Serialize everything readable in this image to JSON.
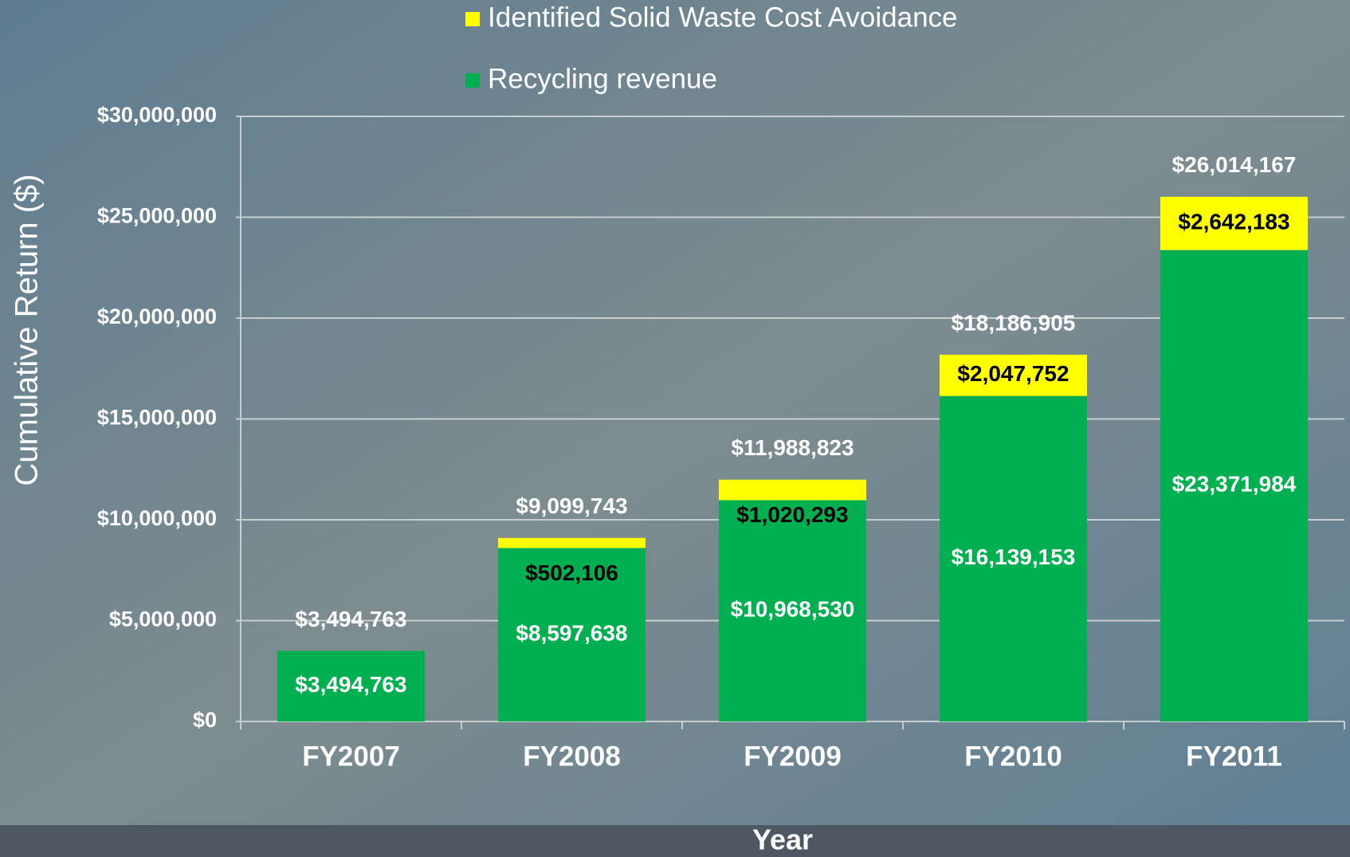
{
  "chart_data": {
    "type": "stacked_bar",
    "y_label": "Cumulative Return ($)",
    "x_label": "Year",
    "categories": [
      "FY2007",
      "FY2008",
      "FY2009",
      "FY2010",
      "FY2011"
    ],
    "series": [
      {
        "name": "Recycling revenue",
        "color": "#00b050",
        "values": [
          3494763,
          8597638,
          10968530,
          16139153,
          23371984
        ],
        "value_labels": [
          "$3,494,763",
          "$8,597,638",
          "$10,968,530",
          "$16,139,153",
          "$23,371,984"
        ]
      },
      {
        "name": "Identified Solid Waste Cost Avoidance",
        "color": "#ffff00",
        "values": [
          null,
          502106,
          1020293,
          2047752,
          2642183
        ],
        "value_labels": [
          null,
          "$502,106",
          "$1,020,293",
          "$2,047,752",
          "$2,642,183"
        ]
      }
    ],
    "totals": [
      3494763,
      9099743,
      11988823,
      18186905,
      26014167
    ],
    "total_labels": [
      "$3,494,763",
      "$9,099,743",
      "$11,988,823",
      "$18,186,905",
      "$26,014,167"
    ],
    "ylim": [
      0,
      30000000
    ],
    "yticks": [
      {
        "value": 0,
        "label": "$0"
      },
      {
        "value": 5000000,
        "label": "$5,000,000"
      },
      {
        "value": 10000000,
        "label": "$10,000,000"
      },
      {
        "value": 15000000,
        "label": "$15,000,000"
      },
      {
        "value": 20000000,
        "label": "$20,000,000"
      },
      {
        "value": 25000000,
        "label": "$25,000,000"
      },
      {
        "value": 30000000,
        "label": "$30,000,000"
      }
    ],
    "grid": true
  }
}
